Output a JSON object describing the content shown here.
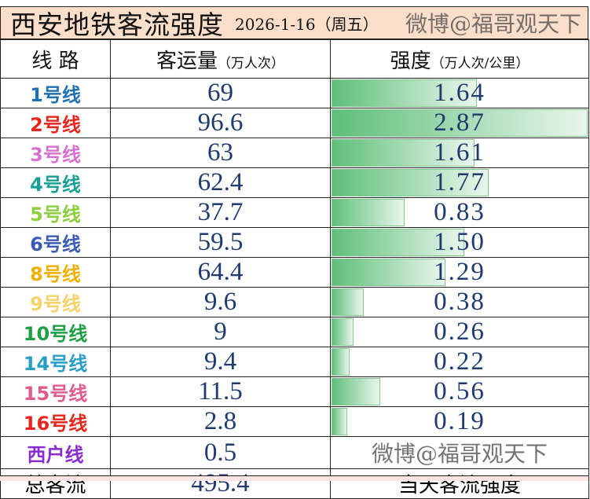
{
  "title": "西安地铁客流强度",
  "date": "2026-1-16（周五）",
  "headers": {
    "line": "线 路",
    "volume": "客运量",
    "volume_unit": "（万人次）",
    "intensity": "强度",
    "intensity_unit": "（万人次/公里）"
  },
  "rows": [
    {
      "line": "1号线",
      "color": "#1f6fb5",
      "volume": "69",
      "intensity": "1.64"
    },
    {
      "line": "2号线",
      "color": "#e8251b",
      "volume": "96.6",
      "intensity": "2.87"
    },
    {
      "line": "3号线",
      "color": "#d66fd0",
      "volume": "63",
      "intensity": "1.61"
    },
    {
      "line": "4号线",
      "color": "#17a196",
      "volume": "62.4",
      "intensity": "1.77"
    },
    {
      "line": "5号线",
      "color": "#8ccf3c",
      "volume": "37.7",
      "intensity": "0.83"
    },
    {
      "line": "6号线",
      "color": "#3a5bb5",
      "volume": "59.5",
      "intensity": "1.50"
    },
    {
      "line": "8号线",
      "color": "#f0b000",
      "volume": "64.4",
      "intensity": "1.29"
    },
    {
      "line": "9号线",
      "color": "#f3d36a",
      "volume": "9.6",
      "intensity": "0.38"
    },
    {
      "line": "10号线",
      "color": "#1f9e45",
      "volume": "9",
      "intensity": "0.26"
    },
    {
      "line": "14号线",
      "color": "#2b9ec8",
      "volume": "9.4",
      "intensity": "0.22"
    },
    {
      "line": "15号线",
      "color": "#e05a8a",
      "volume": "11.5",
      "intensity": "0.56"
    },
    {
      "line": "16号线",
      "color": "#e8251b",
      "volume": "2.8",
      "intensity": "0.19"
    },
    {
      "line": "西户线",
      "color": "#8a2bd0",
      "volume": "0.5",
      "intensity": ""
    }
  ],
  "total": {
    "label": "总客流",
    "volume": "495.4",
    "intensity_label": "当天客流强度"
  },
  "watermark": "微博@福哥观天下",
  "max_intensity": 2.87
}
